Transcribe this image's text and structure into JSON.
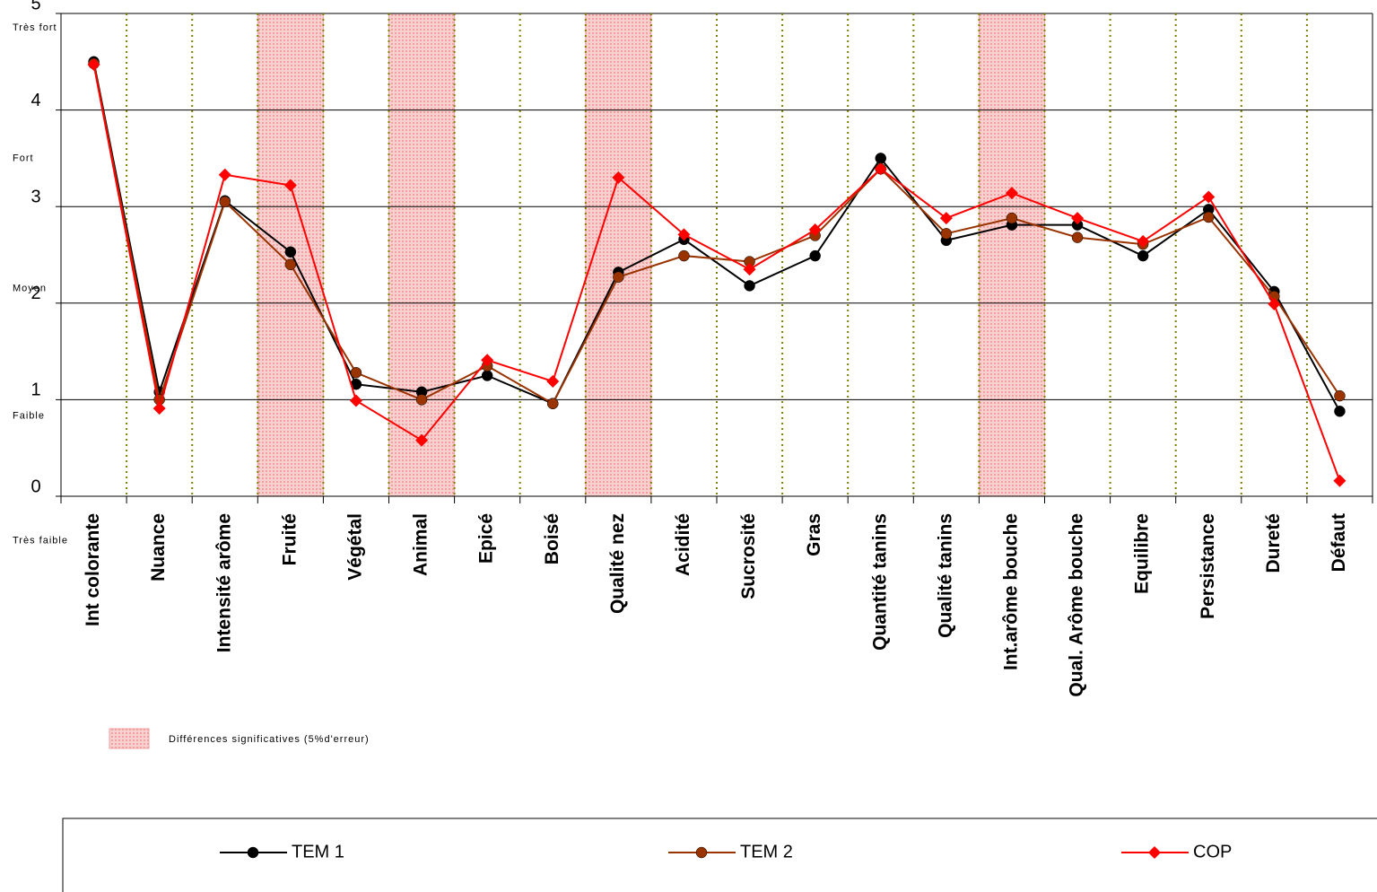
{
  "chart_data": {
    "type": "line",
    "categories": [
      "Int colorante",
      "Nuance",
      "Intensité arôme",
      "Fruité",
      "Végétal",
      "Animal",
      "Epicé",
      "Boisé",
      "Qualité nez",
      "Acidité",
      "Sucrosité",
      "Gras",
      "Quantité tanins",
      "Qualité tanins",
      "Int.arôme bouche",
      "Qual. Arôme bouche",
      "Equilibre",
      "Persistance",
      "Dureté",
      "Défaut"
    ],
    "series": [
      {
        "name": "TEM 1",
        "color": "#000000",
        "marker": "circle",
        "values": [
          4.5,
          1.08,
          3.06,
          2.53,
          1.16,
          1.08,
          1.25,
          0.96,
          2.32,
          2.66,
          2.18,
          2.49,
          3.5,
          2.65,
          2.81,
          2.81,
          2.49,
          2.97,
          2.12,
          0.88
        ]
      },
      {
        "name": "TEM 2",
        "color": "#993300",
        "marker": "circle",
        "values": [
          4.48,
          1.0,
          3.05,
          2.4,
          1.28,
          1.0,
          1.35,
          0.96,
          2.27,
          2.49,
          2.43,
          2.7,
          3.39,
          2.72,
          2.88,
          2.68,
          2.61,
          2.89,
          2.07,
          1.04
        ]
      },
      {
        "name": "COP",
        "color": "#ff0000",
        "marker": "diamond",
        "values": [
          4.47,
          0.91,
          3.33,
          3.22,
          0.99,
          0.58,
          1.41,
          1.19,
          3.3,
          2.71,
          2.35,
          2.76,
          3.39,
          2.88,
          3.14,
          2.88,
          2.64,
          3.1,
          1.99,
          0.16
        ]
      }
    ],
    "ylim": [
      0,
      5
    ],
    "yticks": [
      0,
      1,
      2,
      3,
      4,
      5
    ],
    "grid": true,
    "level_labels": [
      {
        "value": 4.85,
        "label": "Très fort"
      },
      {
        "value": 3.5,
        "label": "Fort"
      },
      {
        "value": 2.15,
        "label": "Moyen"
      },
      {
        "value": 0.83,
        "label": "Faible"
      },
      {
        "value": -0.46,
        "label": "Très faible"
      }
    ],
    "highlighted_categories": [
      3,
      5,
      8,
      14
    ],
    "highlight_label": "Différences significatives (5%d'erreur)",
    "legend": "bottom"
  }
}
